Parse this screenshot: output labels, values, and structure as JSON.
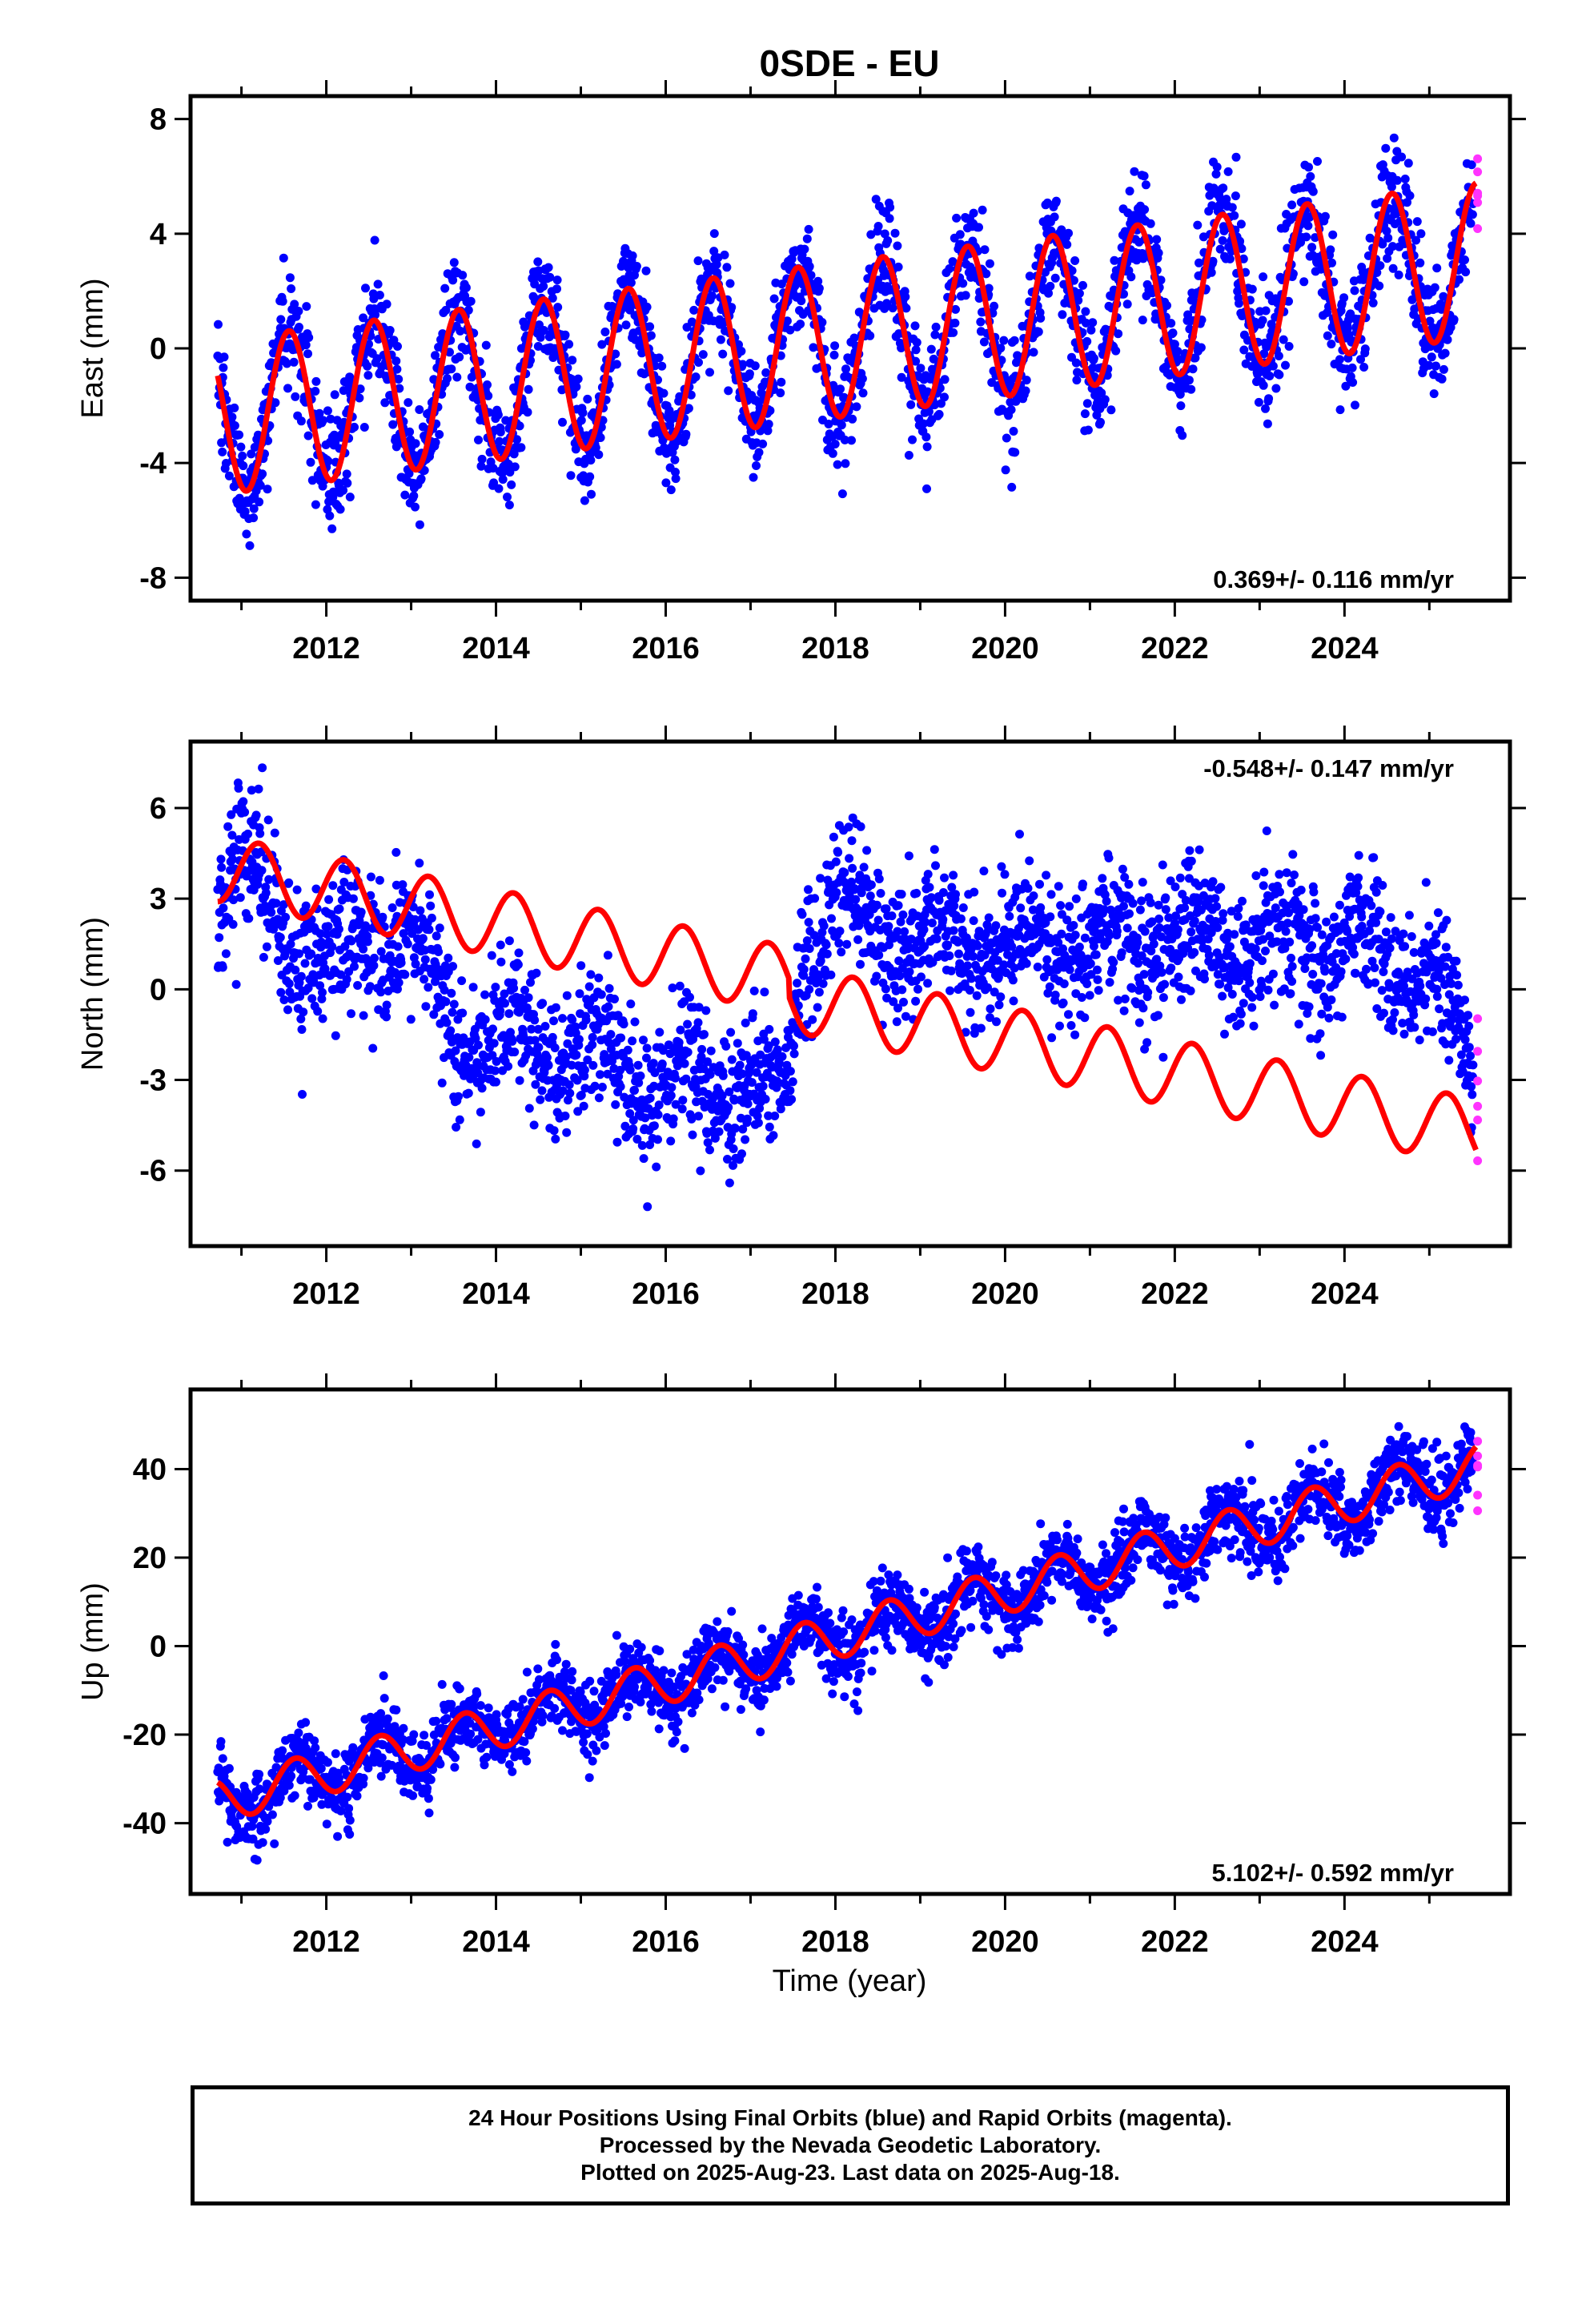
{
  "title": "0SDE - EU",
  "xlabel": "Time (year)",
  "footer": {
    "line1": "24 Hour Positions Using Final Orbits (blue) and Rapid Orbits (magenta).",
    "line2": "Processed by the Nevada Geodetic Laboratory.",
    "line3": "Plotted on 2025-Aug-23. Last data on 2025-Aug-18."
  },
  "colors": {
    "final": "#0000ff",
    "rapid": "#ff33ff",
    "model": "#ff0000"
  },
  "chart_data": [
    {
      "type": "scatter",
      "component": "East",
      "ylabel": "East (mm)",
      "xlim": [
        2010.4,
        2025.95
      ],
      "ylim": [
        -8.8,
        8.8
      ],
      "yticks": [
        -8,
        -4,
        0,
        4,
        8
      ],
      "xticks": [
        2012,
        2014,
        2016,
        2018,
        2020,
        2022,
        2024
      ],
      "rate_label": "0.369+/- 0.116 mm/yr",
      "rate_position": "bottom-right",
      "data_start": 2010.72,
      "data_end": 2025.55,
      "rapid_start": 2025.52,
      "model": {
        "offset": -2.4,
        "rate": 0.369,
        "ref_year": 2010.72,
        "annual_amp": 2.7,
        "annual_phase": 0.31,
        "break_year": null,
        "break_step": 0
      },
      "scatter_sd": 1.0,
      "series": [
        {
          "name": "Final Orbits",
          "color": "#0000ff"
        },
        {
          "name": "Rapid Orbits",
          "color": "#ff33ff"
        },
        {
          "name": "Model fit",
          "color": "#ff0000"
        }
      ]
    },
    {
      "type": "scatter",
      "component": "North",
      "ylabel": "North (mm)",
      "xlim": [
        2010.4,
        2025.95
      ],
      "ylim": [
        -8.5,
        8.2
      ],
      "yticks": [
        -6,
        -3,
        0,
        3,
        6
      ],
      "xticks": [
        2012,
        2014,
        2016,
        2018,
        2020,
        2022,
        2024
      ],
      "rate_label": "-0.548+/- 0.147 mm/yr",
      "rate_position": "top-right",
      "data_start": 2010.72,
      "data_end": 2025.55,
      "rapid_start": 2025.52,
      "model": {
        "offset": 4.0,
        "rate": -0.548,
        "ref_year": 2010.72,
        "annual_amp": 1.1,
        "annual_phase": 0.96,
        "break_year": 2017.45,
        "break_step": -0.6
      },
      "data_trend": [
        [
          2010.72,
          3.0
        ],
        [
          2011.0,
          5.0
        ],
        [
          2011.5,
          1.5
        ],
        [
          2012.0,
          1.0
        ],
        [
          2013.0,
          2.0
        ],
        [
          2013.5,
          -1.5
        ],
        [
          2015.0,
          -2.0
        ],
        [
          2016.0,
          -3.0
        ],
        [
          2017.4,
          -3.5
        ],
        [
          2017.6,
          1.0
        ],
        [
          2018.0,
          3.0
        ],
        [
          2019.0,
          1.5
        ],
        [
          2022.0,
          1.5
        ],
        [
          2024.0,
          1.5
        ],
        [
          2025.0,
          0.5
        ],
        [
          2025.55,
          -3.0
        ]
      ],
      "scatter_sd": 1.1,
      "series": [
        {
          "name": "Final Orbits",
          "color": "#0000ff"
        },
        {
          "name": "Rapid Orbits",
          "color": "#ff33ff"
        },
        {
          "name": "Model fit",
          "color": "#ff0000"
        }
      ]
    },
    {
      "type": "scatter",
      "component": "Up",
      "ylabel": "Up (mm)",
      "xlim": [
        2010.4,
        2025.95
      ],
      "ylim": [
        -56,
        58
      ],
      "yticks": [
        -40,
        -20,
        0,
        20,
        40
      ],
      "xticks": [
        2012,
        2014,
        2016,
        2018,
        2020,
        2022,
        2024
      ],
      "rate_label": "5.102+/- 0.592 mm/yr",
      "rate_position": "bottom-right",
      "data_start": 2010.72,
      "data_end": 2025.55,
      "rapid_start": 2025.52,
      "model": {
        "offset": -35.0,
        "rate": 5.102,
        "ref_year": 2010.72,
        "annual_amp": 5.0,
        "annual_phase": 0.38,
        "break_year": null,
        "break_step": 0
      },
      "scatter_sd": 4.2,
      "series": [
        {
          "name": "Final Orbits",
          "color": "#0000ff"
        },
        {
          "name": "Rapid Orbits",
          "color": "#ff33ff"
        },
        {
          "name": "Model fit",
          "color": "#ff0000"
        }
      ]
    }
  ]
}
